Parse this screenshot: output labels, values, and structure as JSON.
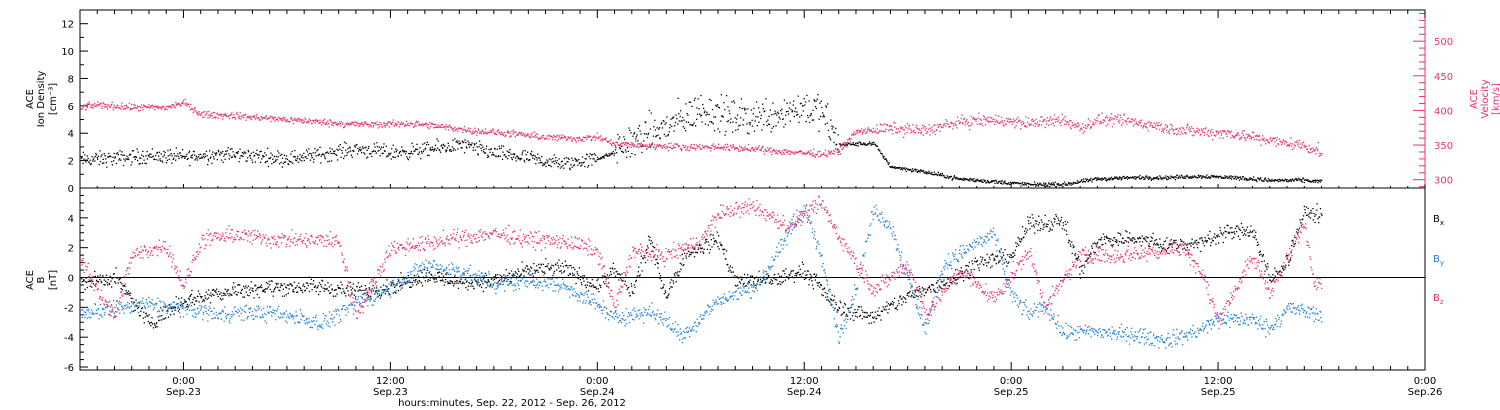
{
  "colors": {
    "black": "#000000",
    "pink": "#e8336b",
    "blue": "#1e7fd6"
  },
  "x_axis": {
    "title": "hours:minutes, Sep. 22, 2012 - Sep. 26, 2012",
    "ticks": [
      {
        "top": "0:00",
        "bottom": "Sep.23",
        "hour": 24
      },
      {
        "top": "12:00",
        "bottom": "Sep.23",
        "hour": 36
      },
      {
        "top": "0:00",
        "bottom": "Sep.24",
        "hour": 48
      },
      {
        "top": "12:00",
        "bottom": "Sep.24",
        "hour": 60
      },
      {
        "top": "0:00",
        "bottom": "Sep.25",
        "hour": 72
      },
      {
        "top": "12:00",
        "bottom": "Sep.25",
        "hour": 84
      },
      {
        "top": "0:00",
        "bottom": "Sep.26",
        "hour": 96
      }
    ]
  },
  "chart_data": [
    {
      "type": "scatter",
      "x_unit": "hours since Sep. 22, 2012 00:00",
      "xlim": [
        18,
        96
      ],
      "left_axis": {
        "label_lines": [
          "ACE",
          "Ion Density",
          "[cm⁻³]"
        ],
        "ylim": [
          0,
          13
        ],
        "ticks": [
          "0",
          "2",
          "4",
          "6",
          "8",
          "10",
          "12"
        ]
      },
      "right_axis": {
        "label_lines": [
          "ACE",
          "Velocity",
          "[km/s]"
        ],
        "ylim": [
          288,
          545
        ],
        "ticks": [
          "300",
          "350",
          "400",
          "450",
          "500"
        ]
      },
      "series": [
        {
          "axis": "left",
          "color": "#000000",
          "points": [
            [
              18,
              2.1
            ],
            [
              20,
              2.2
            ],
            [
              22,
              2.4
            ],
            [
              24,
              2.3
            ],
            [
              26,
              2.5
            ],
            [
              28,
              2.4
            ],
            [
              30,
              2.2
            ],
            [
              32,
              2.5
            ],
            [
              34,
              2.9
            ],
            [
              36,
              2.6
            ],
            [
              38,
              2.8
            ],
            [
              40,
              3.2
            ],
            [
              42,
              2.6
            ],
            [
              44,
              2.2
            ],
            [
              46,
              1.8
            ],
            [
              48,
              2.2
            ],
            [
              49,
              2.6
            ],
            [
              50,
              3.5
            ],
            [
              52,
              4.5
            ],
            [
              54,
              5.8
            ],
            [
              56,
              5.1
            ],
            [
              58,
              5.4
            ],
            [
              60,
              6.0
            ],
            [
              61,
              5.5
            ],
            [
              62,
              3.2
            ],
            [
              64,
              3.3
            ],
            [
              65,
              1.6
            ],
            [
              67,
              1.2
            ],
            [
              69,
              0.7
            ],
            [
              71,
              0.5
            ],
            [
              73,
              0.3
            ],
            [
              75,
              0.3
            ],
            [
              77,
              0.7
            ],
            [
              79,
              0.8
            ],
            [
              81,
              0.8
            ],
            [
              83,
              0.9
            ],
            [
              85,
              0.8
            ],
            [
              87,
              0.6
            ],
            [
              89,
              0.6
            ],
            [
              90,
              0.5
            ]
          ]
        },
        {
          "axis": "right",
          "color": "#e8336b",
          "points": [
            [
              18,
              405
            ],
            [
              19,
              409
            ],
            [
              21,
              405
            ],
            [
              23,
              405
            ],
            [
              24,
              412
            ],
            [
              25,
              395
            ],
            [
              27,
              393
            ],
            [
              29,
              389
            ],
            [
              31,
              386
            ],
            [
              33,
              382
            ],
            [
              35,
              380
            ],
            [
              37,
              382
            ],
            [
              39,
              377
            ],
            [
              41,
              371
            ],
            [
              43,
              367
            ],
            [
              45,
              362
            ],
            [
              47,
              360
            ],
            [
              48,
              362
            ],
            [
              49,
              352
            ],
            [
              51,
              350
            ],
            [
              53,
              348
            ],
            [
              55,
              348
            ],
            [
              57,
              345
            ],
            [
              59,
              341
            ],
            [
              61,
              338
            ],
            [
              62,
              342
            ],
            [
              63,
              370
            ],
            [
              65,
              375
            ],
            [
              67,
              372
            ],
            [
              69,
              384
            ],
            [
              71,
              387
            ],
            [
              73,
              382
            ],
            [
              75,
              387
            ],
            [
              76,
              375
            ],
            [
              77,
              387
            ],
            [
              79,
              385
            ],
            [
              81,
              375
            ],
            [
              83,
              370
            ],
            [
              85,
              367
            ],
            [
              87,
              357
            ],
            [
              89,
              350
            ],
            [
              90,
              340
            ]
          ]
        }
      ]
    },
    {
      "type": "scatter",
      "x_unit": "hours since Sep. 22, 2012 00:00",
      "xlim": [
        18,
        96
      ],
      "left_axis": {
        "label_lines": [
          "ACE",
          "B",
          "[nT]"
        ],
        "ylim": [
          -6.2,
          6
        ],
        "ticks": [
          "-6",
          "-4",
          "-2",
          "0",
          "2",
          "4"
        ]
      },
      "zero_line": 0,
      "legend": [
        {
          "label": "B",
          "sub": "x",
          "color": "#000000"
        },
        {
          "label": "B",
          "sub": "y",
          "color": "#1e7fd6"
        },
        {
          "label": "B",
          "sub": "z",
          "color": "#e8336b"
        }
      ],
      "series": [
        {
          "name": "Bx",
          "color": "#000000",
          "points": [
            [
              18,
              -0.3
            ],
            [
              20,
              0.0
            ],
            [
              22,
              -3.0
            ],
            [
              24,
              -1.5
            ],
            [
              26,
              -1.0
            ],
            [
              28,
              -0.7
            ],
            [
              30,
              -0.6
            ],
            [
              32,
              -0.6
            ],
            [
              34,
              -0.9
            ],
            [
              36,
              -0.6
            ],
            [
              38,
              0.2
            ],
            [
              40,
              -0.3
            ],
            [
              42,
              -0.2
            ],
            [
              44,
              0.5
            ],
            [
              46,
              0.7
            ],
            [
              48,
              -0.6
            ],
            [
              49,
              0.5
            ],
            [
              50,
              -1.0
            ],
            [
              51,
              2.5
            ],
            [
              52,
              -1.2
            ],
            [
              53,
              1.5
            ],
            [
              55,
              2.6
            ],
            [
              56,
              -0.2
            ],
            [
              58,
              -0.2
            ],
            [
              60,
              0.5
            ],
            [
              61,
              -0.8
            ],
            [
              62,
              -2.0
            ],
            [
              64,
              -2.6
            ],
            [
              66,
              -1.2
            ],
            [
              68,
              -0.4
            ],
            [
              70,
              1.0
            ],
            [
              72,
              1.5
            ],
            [
              73,
              3.6
            ],
            [
              75,
              3.8
            ],
            [
              76,
              0.5
            ],
            [
              77,
              2.5
            ],
            [
              79,
              2.7
            ],
            [
              81,
              2.2
            ],
            [
              83,
              2.3
            ],
            [
              84,
              3.0
            ],
            [
              86,
              3.2
            ],
            [
              87,
              -0.2
            ],
            [
              88,
              1.2
            ],
            [
              89,
              4.4
            ],
            [
              90,
              4.2
            ]
          ]
        },
        {
          "name": "By",
          "color": "#1e7fd6",
          "points": [
            [
              18,
              -2.4
            ],
            [
              20,
              -2.0
            ],
            [
              22,
              -1.8
            ],
            [
              24,
              -2.0
            ],
            [
              26,
              -2.4
            ],
            [
              28,
              -2.3
            ],
            [
              30,
              -2.5
            ],
            [
              32,
              -3.0
            ],
            [
              34,
              -1.8
            ],
            [
              36,
              -0.6
            ],
            [
              38,
              0.8
            ],
            [
              40,
              0.5
            ],
            [
              42,
              -0.4
            ],
            [
              44,
              -0.2
            ],
            [
              46,
              -0.5
            ],
            [
              48,
              -1.8
            ],
            [
              49,
              -2.7
            ],
            [
              51,
              -2.2
            ],
            [
              53,
              -3.8
            ],
            [
              55,
              -1.5
            ],
            [
              57,
              -0.7
            ],
            [
              58,
              0.8
            ],
            [
              59,
              2.8
            ],
            [
              60,
              4.8
            ],
            [
              61,
              1.2
            ],
            [
              62,
              -4.0
            ],
            [
              63,
              -0.6
            ],
            [
              64,
              4.5
            ],
            [
              65,
              3.5
            ],
            [
              67,
              -3.5
            ],
            [
              68,
              0.8
            ],
            [
              70,
              2.4
            ],
            [
              71,
              2.8
            ],
            [
              72,
              -1.2
            ],
            [
              73,
              -2.4
            ],
            [
              74,
              -1.8
            ],
            [
              75,
              -3.7
            ],
            [
              77,
              -3.6
            ],
            [
              79,
              -3.8
            ],
            [
              81,
              -4.2
            ],
            [
              83,
              -3.5
            ],
            [
              84,
              -2.7
            ],
            [
              86,
              -2.8
            ],
            [
              87,
              -3.4
            ],
            [
              88,
              -2.0
            ],
            [
              90,
              -2.5
            ]
          ]
        },
        {
          "name": "Bz",
          "color": "#e8336b",
          "points": [
            [
              18,
              1.2
            ],
            [
              20,
              -2.7
            ],
            [
              21,
              1.5
            ],
            [
              23,
              2.2
            ],
            [
              24,
              -0.6
            ],
            [
              25,
              2.5
            ],
            [
              27,
              2.9
            ],
            [
              29,
              2.6
            ],
            [
              31,
              2.5
            ],
            [
              33,
              2.5
            ],
            [
              34,
              -2.5
            ],
            [
              36,
              2.0
            ],
            [
              38,
              2.3
            ],
            [
              40,
              2.7
            ],
            [
              42,
              3.0
            ],
            [
              44,
              2.6
            ],
            [
              46,
              2.4
            ],
            [
              47,
              2.2
            ],
            [
              48,
              1.8
            ],
            [
              49,
              -2.0
            ],
            [
              50,
              1.8
            ],
            [
              52,
              1.5
            ],
            [
              54,
              2.5
            ],
            [
              55,
              4.3
            ],
            [
              57,
              4.8
            ],
            [
              59,
              3.5
            ],
            [
              60,
              4.2
            ],
            [
              61,
              5.0
            ],
            [
              62,
              2.8
            ],
            [
              64,
              -0.8
            ],
            [
              66,
              0.9
            ],
            [
              67,
              -2.4
            ],
            [
              69,
              0.5
            ],
            [
              71,
              -1.4
            ],
            [
              73,
              1.8
            ],
            [
              74,
              -2.0
            ],
            [
              76,
              1.6
            ],
            [
              78,
              1.5
            ],
            [
              80,
              1.7
            ],
            [
              82,
              2.1
            ],
            [
              83,
              0.4
            ],
            [
              84,
              -2.8
            ],
            [
              86,
              1.4
            ],
            [
              87,
              -0.9
            ],
            [
              88,
              1.2
            ],
            [
              89,
              3.8
            ],
            [
              89.5,
              0.0
            ],
            [
              90,
              -0.3
            ]
          ]
        }
      ]
    }
  ]
}
